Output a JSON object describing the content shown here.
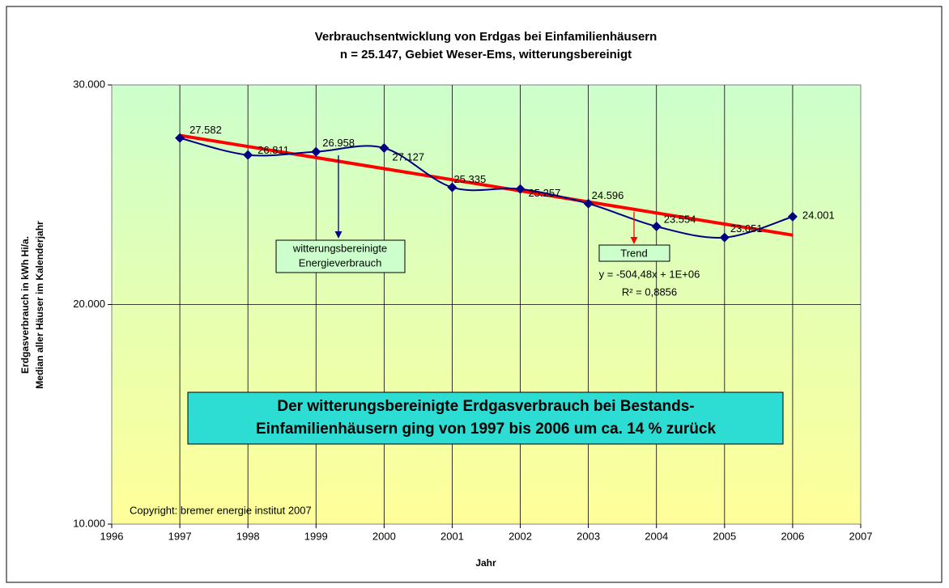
{
  "chart_data": {
    "type": "line",
    "title": [
      "Verbrauchsentwicklung von Erdgas bei Einfamilienhäusern",
      "n = 25.147, Gebiet Weser-Ems, witterungsbereinigt"
    ],
    "x_label": "Jahr",
    "y_label": [
      "Erdgasverbrauch in kWh Hi/a.",
      "Median aller Häuser im Kalenderjahr"
    ],
    "x": [
      1997,
      1998,
      1999,
      2000,
      2001,
      2002,
      2003,
      2004,
      2005,
      2006
    ],
    "series": [
      {
        "name": "witterungsbereinigte Energieverbrauch",
        "color": "#000080",
        "smooth": true,
        "values": [
          27582,
          26811,
          26958,
          27127,
          25335,
          25257,
          24596,
          23554,
          23051,
          24001
        ],
        "value_labels": [
          "27.582",
          "26.811",
          "26.958",
          "27.127",
          "25.335",
          "25.257",
          "24.596",
          "23.554",
          "23.051",
          "24.001"
        ]
      },
      {
        "name": "Trend",
        "color": "#ff0000",
        "x": [
          1997,
          2006
        ],
        "values": [
          27700,
          23160
        ]
      }
    ],
    "xlim": [
      1996,
      2007
    ],
    "xticks": [
      1996,
      1997,
      1998,
      1999,
      2000,
      2001,
      2002,
      2003,
      2004,
      2005,
      2006,
      2007
    ],
    "ylim": [
      10000,
      30000
    ],
    "yticks": [
      {
        "value": 10000,
        "label": "10.000"
      },
      {
        "value": 20000,
        "label": "20.000"
      },
      {
        "value": 30000,
        "label": "30.000"
      }
    ],
    "grid": true,
    "annotations": {
      "series_box": [
        "witterungsbereinigte",
        "Energieverbrauch"
      ],
      "trend_equation": "y = -504,48x + 1E+06",
      "r_squared": "R² = 0,8856",
      "headline": [
        "Der witterungsbereinigte Erdgasverbrauch bei Bestands-",
        "Einfamilienhäusern ging von 1997 bis 2006 um ca. 14 % zurück"
      ],
      "copyright": "Copyright: bremer energie institut 2007"
    }
  }
}
